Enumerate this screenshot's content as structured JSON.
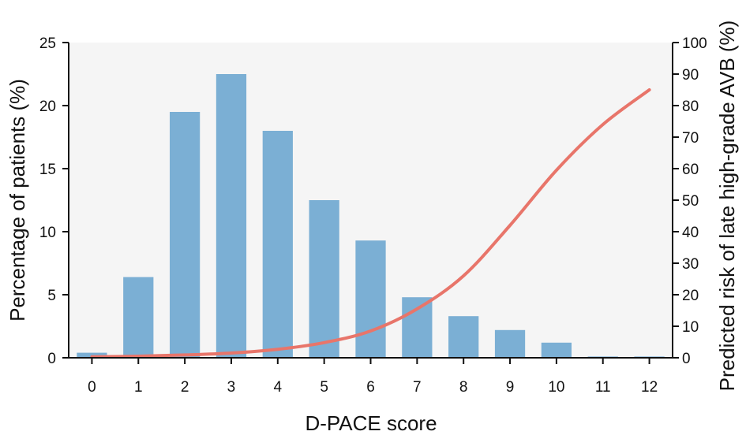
{
  "chart_data": {
    "type": "bar",
    "xlabel": "D-PACE score",
    "ylabel": "Percentage of patients (%)",
    "y2label": "Predicted risk of late high-grade AVB (%)",
    "categories": [
      "0",
      "1",
      "2",
      "3",
      "4",
      "5",
      "6",
      "7",
      "8",
      "9",
      "10",
      "11",
      "12"
    ],
    "ylim": [
      0,
      25
    ],
    "yticks": [
      0,
      5,
      10,
      15,
      20,
      25
    ],
    "y2lim": [
      0,
      100
    ],
    "y2ticks": [
      0,
      10,
      20,
      30,
      40,
      50,
      60,
      70,
      80,
      90,
      100
    ],
    "series": [
      {
        "type": "bar",
        "axis": "left",
        "color": "#7bafd4",
        "values": [
          0.4,
          6.4,
          19.5,
          22.5,
          18.0,
          12.5,
          9.3,
          4.8,
          3.3,
          2.2,
          1.2,
          0.1,
          0.1
        ]
      },
      {
        "type": "line",
        "axis": "right",
        "color": "#e8756a",
        "x": [
          0,
          1,
          2,
          3,
          4,
          5,
          6,
          7,
          8,
          9,
          10,
          11,
          12
        ],
        "values": [
          0.3,
          0.5,
          0.9,
          1.5,
          2.7,
          4.8,
          8.5,
          15.5,
          26.0,
          42.0,
          59.5,
          74.0,
          85.0
        ]
      }
    ],
    "grid": false,
    "background": "#f5f5f5"
  }
}
